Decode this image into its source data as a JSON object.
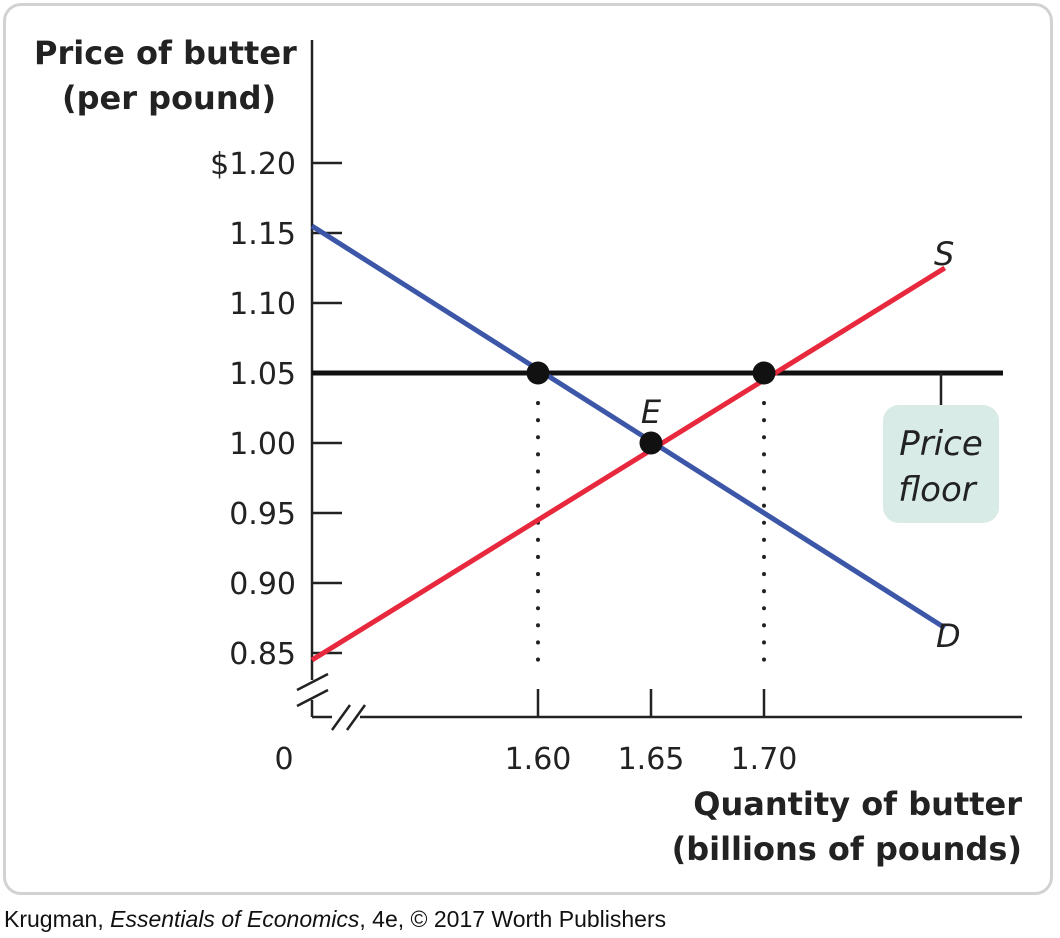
{
  "chart_data": {
    "type": "line",
    "ylabel_lines": [
      "Price of butter",
      "(per pound)"
    ],
    "xlabel_lines": [
      "Quantity of butter",
      "(billions of pounds)"
    ],
    "y_ticks": [
      {
        "value": 1.2,
        "label": "$1.20"
      },
      {
        "value": 1.15,
        "label": "1.15"
      },
      {
        "value": 1.1,
        "label": "1.10"
      },
      {
        "value": 1.05,
        "label": "1.05"
      },
      {
        "value": 1.0,
        "label": "1.00"
      },
      {
        "value": 0.95,
        "label": "0.95"
      },
      {
        "value": 0.9,
        "label": "0.90"
      },
      {
        "value": 0.85,
        "label": "0.85"
      }
    ],
    "x_ticks": [
      {
        "value": 1.6,
        "label": "1.60"
      },
      {
        "value": 1.65,
        "label": "1.65"
      },
      {
        "value": 1.7,
        "label": "1.70"
      }
    ],
    "origin_label": "0",
    "axis_break": true,
    "xlim": [
      1.5,
      1.81
    ],
    "ylim": [
      0.85,
      1.2
    ],
    "series": [
      {
        "name": "D",
        "color": "#3c56a8",
        "points": [
          {
            "x": 1.5,
            "y": 1.155
          },
          {
            "x": 1.78,
            "y": 0.868
          }
        ]
      },
      {
        "name": "S",
        "color": "#e8283c",
        "points": [
          {
            "x": 1.5,
            "y": 0.845
          },
          {
            "x": 1.78,
            "y": 1.125
          }
        ]
      }
    ],
    "price_floor": {
      "y": 1.05,
      "x_end": 1.81,
      "label_lines": [
        "Price",
        "floor"
      ],
      "box_color": "#d8ebe6"
    },
    "points": [
      {
        "x": 1.6,
        "y": 1.05,
        "label": ""
      },
      {
        "x": 1.65,
        "y": 1.0,
        "label": "E"
      },
      {
        "x": 1.7,
        "y": 1.05,
        "label": ""
      }
    ],
    "dotted_drops": [
      1.6,
      1.7
    ],
    "grid": false
  },
  "caption": {
    "author": "Krugman, ",
    "book": "Essentials of Economics",
    "rest": ", 4e, © 2017 Worth Publishers"
  }
}
